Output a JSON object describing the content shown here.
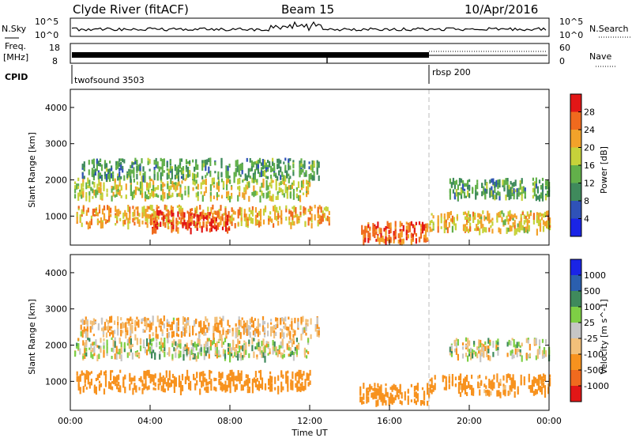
{
  "header": {
    "station": "Clyde River (fitACF)",
    "beam": "Beam 15",
    "date": "10/Apr/2016"
  },
  "noise_panel": {
    "left_label": "N.Sky",
    "left_ticks": [
      "10^5",
      "10^0"
    ],
    "right_label": "N.Search",
    "right_ticks": [
      "10^5",
      "10^0"
    ]
  },
  "freq_panel": {
    "left_label_1": "Freq.",
    "left_label_2": "[MHz]",
    "left_ticks": [
      "18",
      "8"
    ],
    "right_label": "Nave",
    "right_ticks": [
      "60",
      "0"
    ]
  },
  "cpid_panel": {
    "label": "CPID",
    "segments": [
      {
        "name": "twofsound 3503",
        "start_hour": 0
      },
      {
        "name": "rbsp 200",
        "start_hour": 18
      }
    ]
  },
  "x_axis": {
    "label": "Time UT",
    "ticks": [
      "00:00",
      "04:00",
      "08:00",
      "12:00",
      "16:00",
      "20:00",
      "00:00"
    ]
  },
  "colors": {
    "power_scale": [
      "#1a24e6",
      "#2f52b8",
      "#3f8a5c",
      "#62b04a",
      "#c6d23a",
      "#f2a22a",
      "#f06a1e",
      "#e21616"
    ],
    "velocity_scale": [
      "#e21616",
      "#f06a1e",
      "#f7921e",
      "#f2c07a",
      "#c6c6c6",
      "#7ecf45",
      "#3f8a5c",
      "#2b5fae",
      "#1a24e6"
    ]
  },
  "chart_data": [
    {
      "type": "heatmap",
      "title": "",
      "xlabel": "",
      "ylabel": "Slant Range [km]",
      "colorbar_label": "Power [dB]",
      "colorbar_ticks": [
        "28",
        "24",
        "20",
        "16",
        "12",
        "8",
        "4"
      ],
      "xlim": [
        0,
        24
      ],
      "ylim": [
        200,
        4500
      ],
      "y_ticks": [
        "4000",
        "3000",
        "2000",
        "1000"
      ],
      "echo_bands": [
        {
          "t_start": 0.2,
          "t_end": 12.0,
          "range_km": 1750,
          "power_db": 18
        },
        {
          "t_start": 0.5,
          "t_end": 12.5,
          "range_km": 2300,
          "power_db": 12
        },
        {
          "t_start": 0.3,
          "t_end": 13.0,
          "range_km": 1000,
          "power_db": 22
        },
        {
          "t_start": 4.0,
          "t_end": 8.0,
          "range_km": 850,
          "power_db": 28
        },
        {
          "t_start": 14.5,
          "t_end": 18.0,
          "range_km": 550,
          "power_db": 26
        },
        {
          "t_start": 18.0,
          "t_end": 24.0,
          "range_km": 850,
          "power_db": 20
        },
        {
          "t_start": 19.0,
          "t_end": 24.0,
          "range_km": 1750,
          "power_db": 12
        }
      ]
    },
    {
      "type": "heatmap",
      "title": "",
      "xlabel": "Time UT",
      "ylabel": "Slant Range [km]",
      "colorbar_label": "Velocity [m s^-1]",
      "colorbar_ticks": [
        "1000",
        "500",
        "100",
        "25",
        "-25",
        "-100",
        "-500",
        "-1000"
      ],
      "xlim": [
        0,
        24
      ],
      "ylim": [
        200,
        4500
      ],
      "y_ticks": [
        "4000",
        "3000",
        "2000",
        "1000"
      ],
      "echo_bands": [
        {
          "t_start": 0.2,
          "t_end": 12.0,
          "range_km": 1900,
          "velocity_ms": 0
        },
        {
          "t_start": 0.5,
          "t_end": 12.5,
          "range_km": 2500,
          "velocity_ms": -100
        },
        {
          "t_start": 0.3,
          "t_end": 12.0,
          "range_km": 1000,
          "velocity_ms": -300
        },
        {
          "t_start": 14.5,
          "t_end": 18.0,
          "range_km": 650,
          "velocity_ms": -300
        },
        {
          "t_start": 18.0,
          "t_end": 24.0,
          "range_km": 900,
          "velocity_ms": -200
        },
        {
          "t_start": 19.0,
          "t_end": 24.0,
          "range_km": 1900,
          "velocity_ms": 0
        }
      ]
    }
  ]
}
